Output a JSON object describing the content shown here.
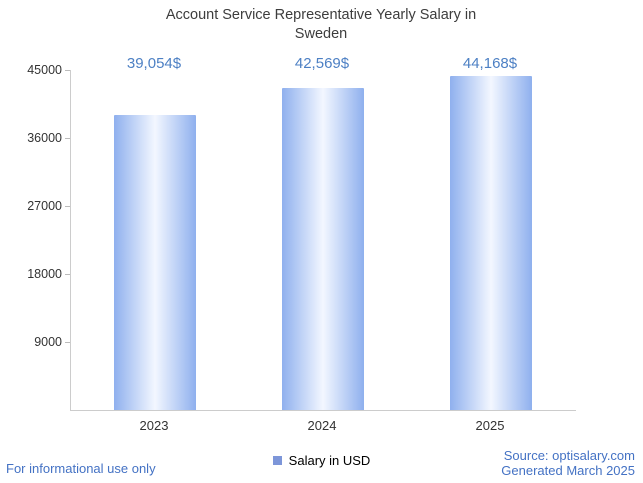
{
  "chart_data": {
    "type": "bar",
    "title": "Account Service Representative Yearly Salary in Sweden",
    "categories": [
      "2023",
      "2024",
      "2025"
    ],
    "values": [
      39054,
      42569,
      44168
    ],
    "value_labels": [
      "39,054$",
      "42,569$",
      "44,168$"
    ],
    "ylim": [
      0,
      45000
    ],
    "yticks": [
      9000,
      18000,
      27000,
      36000,
      45000
    ],
    "ytick_labels": [
      "9000",
      "18000",
      "27000",
      "36000",
      "45000"
    ],
    "xlabel": "",
    "ylabel": "",
    "grid": "off",
    "legend_position": "bottom-center",
    "series_name": "Salary in USD",
    "colors": {
      "bar_edge": "#8fb0ee",
      "bar_center": "#f3f7ff",
      "value_label": "#4d80c4",
      "legend_marker": "#7d96d9",
      "footer_text": "#4472c4",
      "axis_line": "#cccccc",
      "title_text": "#3d3d3d"
    }
  },
  "legend": {
    "label": "Salary in USD"
  },
  "footer": {
    "disclaimer": "For informational use only",
    "source": "Source: optisalary.com",
    "generated": "Generated March 2025"
  }
}
